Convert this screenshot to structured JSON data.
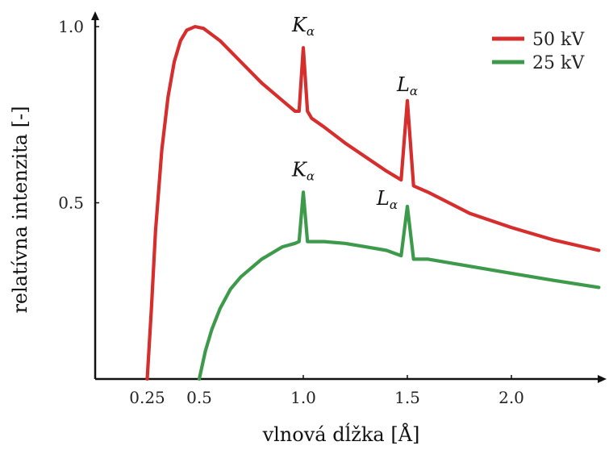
{
  "chart_data": {
    "type": "line",
    "xlabel": "vlnová dĺžka [Å]",
    "ylabel": "relatívna intenzita [-]",
    "xlim": [
      0.0,
      2.42
    ],
    "ylim": [
      0.0,
      1.06
    ],
    "x_ticks": [
      {
        "value": 0.25,
        "label": "0.25"
      },
      {
        "value": 0.5,
        "label": "0.5"
      },
      {
        "value": 1.0,
        "label": "1.0"
      },
      {
        "value": 1.5,
        "label": "1.5"
      },
      {
        "value": 2.0,
        "label": "2.0"
      }
    ],
    "y_ticks": [
      {
        "value": 0.5,
        "label": "0.5"
      },
      {
        "value": 1.0,
        "label": "1.0"
      }
    ],
    "grid": false,
    "legend_position": "top-right",
    "series": [
      {
        "name": "50 kV",
        "color": "#d62d2d",
        "points": [
          [
            0.25,
            0.0
          ],
          [
            0.27,
            0.2
          ],
          [
            0.29,
            0.42
          ],
          [
            0.32,
            0.65
          ],
          [
            0.35,
            0.8
          ],
          [
            0.38,
            0.9
          ],
          [
            0.41,
            0.96
          ],
          [
            0.44,
            0.99
          ],
          [
            0.48,
            1.0
          ],
          [
            0.52,
            0.995
          ],
          [
            0.6,
            0.96
          ],
          [
            0.7,
            0.9
          ],
          [
            0.8,
            0.84
          ],
          [
            0.9,
            0.79
          ],
          [
            0.96,
            0.76
          ],
          [
            0.98,
            0.76
          ],
          [
            1.0,
            0.94
          ],
          [
            1.02,
            0.76
          ],
          [
            1.04,
            0.74
          ],
          [
            1.1,
            0.715
          ],
          [
            1.2,
            0.67
          ],
          [
            1.3,
            0.63
          ],
          [
            1.4,
            0.59
          ],
          [
            1.47,
            0.565
          ],
          [
            1.5,
            0.79
          ],
          [
            1.53,
            0.548
          ],
          [
            1.6,
            0.53
          ],
          [
            1.8,
            0.47
          ],
          [
            2.0,
            0.43
          ],
          [
            2.2,
            0.395
          ],
          [
            2.42,
            0.365
          ]
        ]
      },
      {
        "name": "25 kV",
        "color": "#3c9a4a",
        "points": [
          [
            0.5,
            0.0
          ],
          [
            0.53,
            0.08
          ],
          [
            0.56,
            0.14
          ],
          [
            0.6,
            0.2
          ],
          [
            0.65,
            0.255
          ],
          [
            0.7,
            0.29
          ],
          [
            0.8,
            0.34
          ],
          [
            0.9,
            0.375
          ],
          [
            0.96,
            0.385
          ],
          [
            0.98,
            0.39
          ],
          [
            1.0,
            0.53
          ],
          [
            1.02,
            0.39
          ],
          [
            1.04,
            0.39
          ],
          [
            1.1,
            0.39
          ],
          [
            1.2,
            0.385
          ],
          [
            1.3,
            0.375
          ],
          [
            1.4,
            0.365
          ],
          [
            1.47,
            0.35
          ],
          [
            1.5,
            0.49
          ],
          [
            1.53,
            0.34
          ],
          [
            1.6,
            0.34
          ],
          [
            1.8,
            0.32
          ],
          [
            2.0,
            0.3
          ],
          [
            2.2,
            0.28
          ],
          [
            2.42,
            0.26
          ]
        ]
      }
    ],
    "annotations": [
      {
        "series": "50 kV",
        "main": "K",
        "sub": "α",
        "x": 1.0,
        "y": 0.94
      },
      {
        "series": "50 kV",
        "main": "L",
        "sub": "α",
        "x": 1.5,
        "y": 0.79
      },
      {
        "series": "25 kV",
        "main": "K",
        "sub": "α",
        "x": 1.0,
        "y": 0.53
      },
      {
        "series": "25 kV",
        "main": "L",
        "sub": "α",
        "x": 1.5,
        "y": 0.49
      }
    ]
  }
}
